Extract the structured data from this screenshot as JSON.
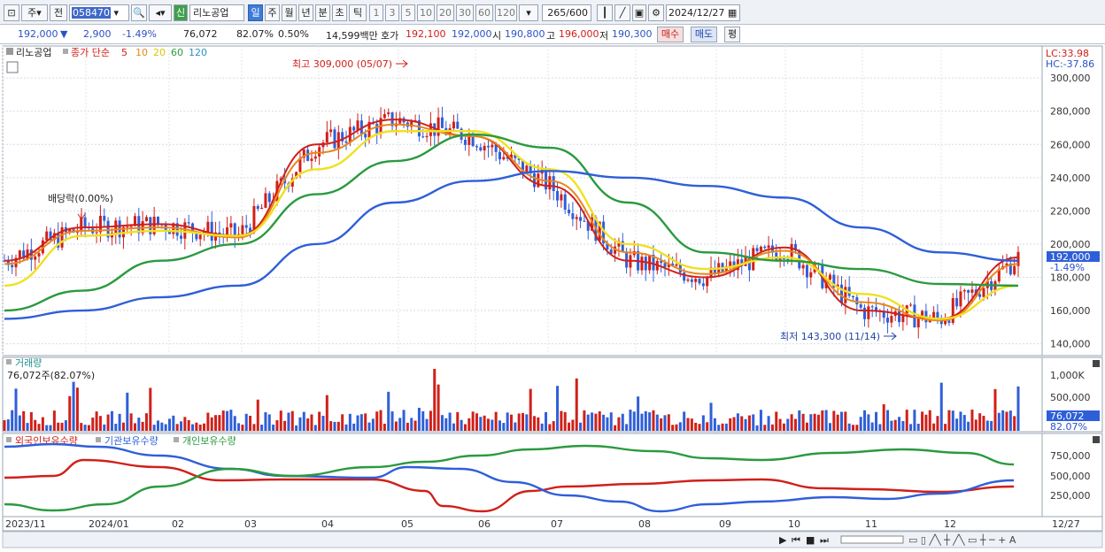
{
  "toolbar": {
    "type_label": "주",
    "prev_label": "전",
    "code_value": "058470",
    "stock_badge": "신",
    "stock_name": "리노공업",
    "periods": [
      "일",
      "주",
      "월",
      "년",
      "분",
      "초",
      "틱"
    ],
    "active_period": "일",
    "intervals": [
      "1",
      "3",
      "5",
      "10",
      "20",
      "30",
      "60",
      "120"
    ],
    "count_display": "265",
    "count_max": "/600",
    "date_value": "2024/12/27"
  },
  "quote": {
    "price": "192,000",
    "change_arrow": "▼",
    "change": "2,900",
    "change_pct": "-1.49%",
    "volume": "76,072",
    "volume_ratio": "82.07%",
    "turnover_pct": "0.50%",
    "trade_amount": "14,599백만",
    "ask_label": "호가",
    "ask1": "192,100",
    "bid1": "192,000",
    "open_label": "시",
    "open": "190,800",
    "high_label": "고",
    "high": "196,000",
    "low_label": "저",
    "low": "190,300",
    "buy_label": "매수",
    "sell_label": "매도",
    "avg_label": "평"
  },
  "price_panel": {
    "stock_label": "리노공업",
    "ma_title": "종가 단순",
    "ma_periods": [
      "5",
      "10",
      "20",
      "60",
      "120"
    ],
    "ma_colors": [
      "#d0201a",
      "#e8861c",
      "#f0e020",
      "#2a9a3e",
      "#2f5fd8"
    ],
    "lc_label": "LC:33.98",
    "hc_label": "HC:-37.86",
    "y_ticks": [
      "300,000",
      "280,000",
      "260,000",
      "240,000",
      "220,000",
      "200,000",
      "180,000",
      "160,000",
      "140,000"
    ],
    "y_values": [
      300000,
      280000,
      260000,
      240000,
      220000,
      200000,
      180000,
      160000,
      140000
    ],
    "max_annotation": "최고 309,000 (05/07)",
    "min_annotation": "최저 143,300 (11/14)",
    "dividend_annotation": "배당락(0.00%)",
    "last_price_tag": "192,000",
    "last_change_tag": "-1.49%"
  },
  "volume_panel": {
    "title": "거래량",
    "current": "76,072주(82.07%)",
    "y_tick": "1,000K",
    "y_tick2": "500,000",
    "last_tag": "76,072",
    "last_ratio_tag": "82.07%"
  },
  "holding_panel": {
    "legend": [
      "외국인보유수량",
      "기관보유수량",
      "개인보유수량"
    ],
    "colors": [
      "#d0201a",
      "#2f5fd8",
      "#2a9a3e"
    ],
    "y_ticks": [
      "750,000",
      "500,000",
      "250,000"
    ]
  },
  "x_axis": {
    "labels": [
      "2023/11",
      "2024/01",
      "02",
      "03",
      "04",
      "05",
      "06",
      "07",
      "08",
      "09",
      "10",
      "11",
      "12"
    ],
    "right_label": "12/27"
  },
  "chart_data": {
    "type": "line",
    "title": "",
    "y_range": [
      135000,
      315000
    ],
    "x": [
      "2023/11",
      "2024/01",
      "02",
      "03",
      "04",
      "05",
      "06",
      "07",
      "08",
      "09",
      "10",
      "11",
      "12",
      "12/27"
    ],
    "series": [
      {
        "name": "5",
        "values": [
          190000,
          210000,
          212000,
          205000,
          260000,
          275000,
          265000,
          235000,
          190000,
          180000,
          198000,
          160000,
          155000,
          192000
        ]
      },
      {
        "name": "10",
        "values": [
          188000,
          208000,
          210000,
          204000,
          255000,
          272000,
          265000,
          238000,
          195000,
          182000,
          196000,
          165000,
          154000,
          188000
        ]
      },
      {
        "name": "20",
        "values": [
          175000,
          205000,
          208000,
          205000,
          245000,
          268000,
          268000,
          245000,
          200000,
          185000,
          192000,
          170000,
          155000,
          175000
        ]
      },
      {
        "name": "60",
        "values": [
          160000,
          172000,
          190000,
          200000,
          230000,
          250000,
          266000,
          258000,
          225000,
          195000,
          190000,
          185000,
          176000,
          175000
        ]
      },
      {
        "name": "120",
        "values": [
          155000,
          160000,
          168000,
          175000,
          200000,
          225000,
          238000,
          244000,
          240000,
          235000,
          228000,
          210000,
          195000,
          190000
        ]
      }
    ],
    "annotations": {
      "max": 309000,
      "max_date": "05/07",
      "min": 143300,
      "min_date": "11/14",
      "last": 192000
    }
  }
}
